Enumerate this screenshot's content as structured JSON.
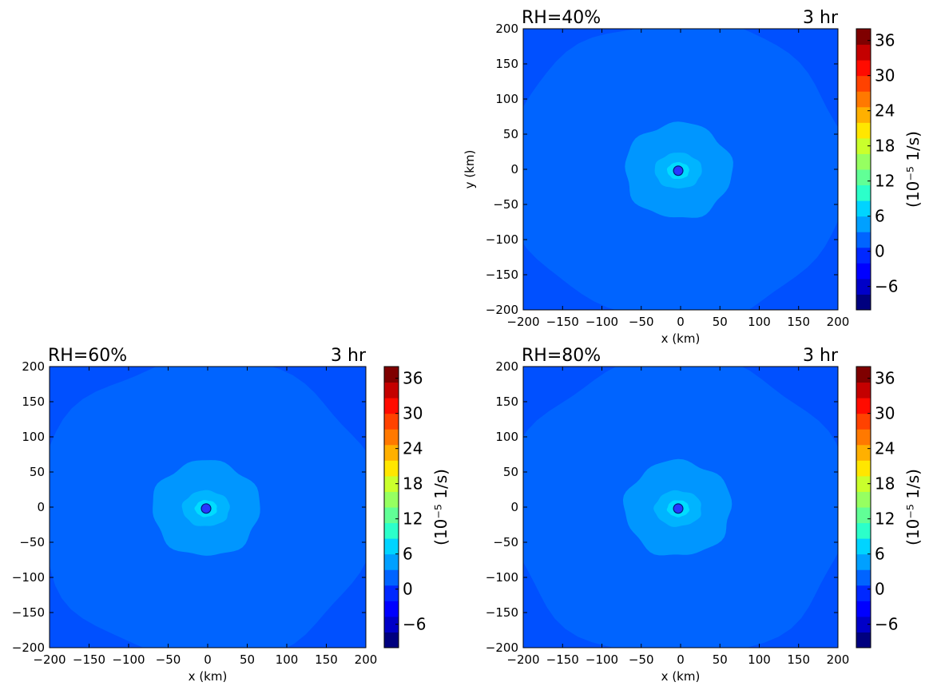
{
  "colormap": [
    "#00007f",
    "#0000c8",
    "#0000ff",
    "#0028ff",
    "#0064ff",
    "#00a0ff",
    "#00d4ff",
    "#2cffca",
    "#61ff96",
    "#96ff61",
    "#caff2c",
    "#ffe600",
    "#ffb000",
    "#ff7900",
    "#ff4200",
    "#ff0b00",
    "#c40000",
    "#7f0000"
  ],
  "chart_data": [
    {
      "type": "contourf",
      "title_left": "RH=40%",
      "title_right": "3 hr",
      "xlabel": "x (km)",
      "ylabel": "y (km)",
      "xlim": [
        -200,
        200
      ],
      "ylim": [
        -200,
        200
      ],
      "xticks": [
        -200,
        -150,
        -100,
        -50,
        0,
        50,
        100,
        150,
        200
      ],
      "yticks": [
        -200,
        -150,
        -100,
        -50,
        0,
        50,
        100,
        150,
        200
      ],
      "center": [
        -3,
        -2
      ],
      "regions": [
        {
          "name": "background",
          "value": 0,
          "color": "#0050ff"
        },
        {
          "name": "main-disk",
          "value": 2,
          "color": "#0064ff",
          "radius_km": 200
        },
        {
          "name": "middle-ring",
          "value": 4,
          "color": "#0096ff",
          "radius_km": 68
        },
        {
          "name": "inner-ring",
          "value": 6,
          "color": "#00b4ff",
          "radius_km": 30
        },
        {
          "name": "core-ring",
          "value": 8,
          "color": "#00dcff",
          "radius_km": 14
        },
        {
          "name": "center-dot",
          "value": -2,
          "color": "#2838ff",
          "radius_km": 6
        }
      ],
      "colorbar": {
        "label": "(10⁻⁵  1/s)",
        "min": -10,
        "max": 38,
        "ticks": [
          -6,
          0,
          6,
          12,
          18,
          24,
          30,
          36
        ]
      }
    },
    {
      "type": "contourf",
      "title_left": "RH=60%",
      "title_right": "3 hr",
      "xlabel": "x (km)",
      "ylabel": "",
      "xlim": [
        -200,
        200
      ],
      "ylim": [
        -200,
        200
      ],
      "xticks": [
        -200,
        -150,
        -100,
        -50,
        0,
        50,
        100,
        150,
        200
      ],
      "yticks": [
        -200,
        -150,
        -100,
        -50,
        0,
        50,
        100,
        150,
        200
      ],
      "center": [
        -2,
        -2
      ],
      "regions": [
        {
          "name": "background",
          "value": 0,
          "color": "#0050ff"
        },
        {
          "name": "main-disk",
          "value": 2,
          "color": "#0064ff",
          "radius_km": 200
        },
        {
          "name": "middle-ring",
          "value": 4,
          "color": "#0096ff",
          "radius_km": 68
        },
        {
          "name": "inner-ring",
          "value": 6,
          "color": "#00b4ff",
          "radius_km": 30
        },
        {
          "name": "core-ring",
          "value": 8,
          "color": "#00dcff",
          "radius_km": 14
        },
        {
          "name": "center-dot",
          "value": -2,
          "color": "#2838ff",
          "radius_km": 6
        }
      ],
      "colorbar": {
        "label": "(10⁻⁵  1/s)",
        "min": -10,
        "max": 38,
        "ticks": [
          -6,
          0,
          6,
          12,
          18,
          24,
          30,
          36
        ]
      }
    },
    {
      "type": "contourf",
      "title_left": "RH=80%",
      "title_right": "3 hr",
      "xlabel": "x (km)",
      "ylabel": "",
      "xlim": [
        -200,
        200
      ],
      "ylim": [
        -200,
        200
      ],
      "xticks": [
        -200,
        -150,
        -100,
        -50,
        0,
        50,
        100,
        150,
        200
      ],
      "yticks": [
        -200,
        -150,
        -100,
        -50,
        0,
        50,
        100,
        150,
        200
      ],
      "center": [
        -3,
        -2
      ],
      "regions": [
        {
          "name": "background",
          "value": 0,
          "color": "#0050ff"
        },
        {
          "name": "main-disk",
          "value": 2,
          "color": "#0064ff",
          "radius_km": 200
        },
        {
          "name": "middle-ring",
          "value": 4,
          "color": "#0096ff",
          "radius_km": 68
        },
        {
          "name": "inner-ring",
          "value": 6,
          "color": "#00b4ff",
          "radius_km": 30
        },
        {
          "name": "core-ring",
          "value": 8,
          "color": "#00dcff",
          "radius_km": 14
        },
        {
          "name": "center-dot",
          "value": -2,
          "color": "#2838ff",
          "radius_km": 6
        }
      ],
      "colorbar": {
        "label": "(10⁻⁵  1/s)",
        "min": -10,
        "max": 38,
        "ticks": [
          -6,
          0,
          6,
          12,
          18,
          24,
          30,
          36
        ]
      }
    }
  ]
}
